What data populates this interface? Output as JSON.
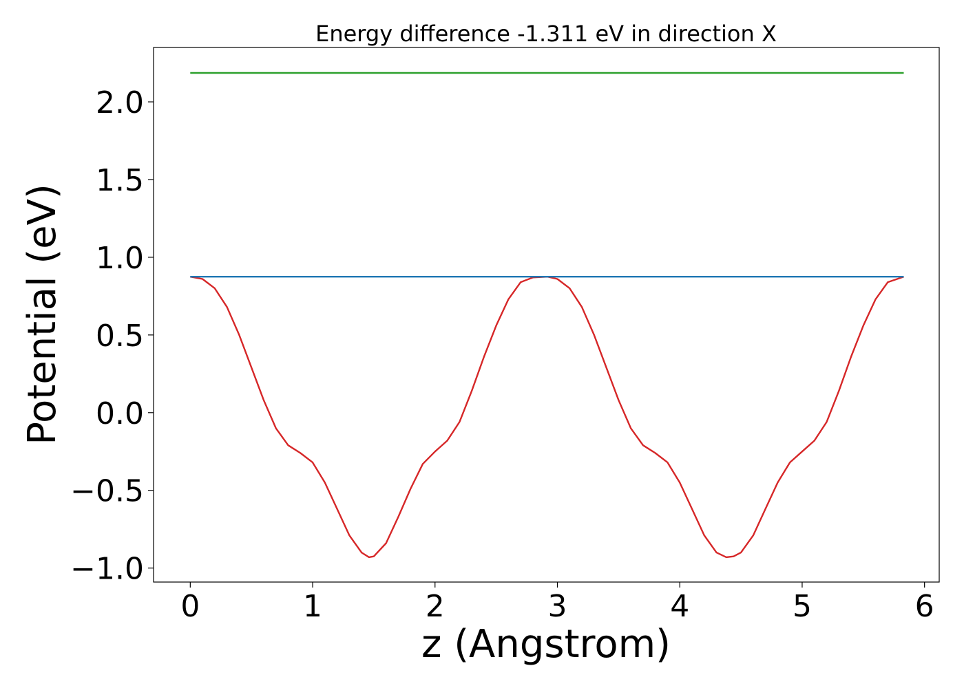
{
  "chart_data": {
    "type": "line",
    "title": "Energy difference -1.311 eV in direction X",
    "xlabel": "z (Angstrom)",
    "ylabel": "Potential (eV)",
    "xlim": [
      -0.3,
      6.12
    ],
    "ylim": [
      -1.09,
      2.35
    ],
    "x_ticks": [
      0,
      1,
      2,
      3,
      4,
      5,
      6
    ],
    "x_tick_labels": [
      "0",
      "1",
      "2",
      "3",
      "4",
      "5",
      "6"
    ],
    "y_ticks": [
      -1.0,
      -0.5,
      0.0,
      0.5,
      1.0,
      1.5,
      2.0
    ],
    "y_tick_labels": [
      "−1.0",
      "−0.5",
      "0.0",
      "0.5",
      "1.0",
      "1.5",
      "2.0"
    ],
    "grid": false,
    "series": [
      {
        "color": "#d62728",
        "x": [
          0.0,
          0.1,
          0.2,
          0.3,
          0.4,
          0.5,
          0.6,
          0.7,
          0.8,
          0.9,
          1.0,
          1.1,
          1.2,
          1.3,
          1.4,
          1.46,
          1.5,
          1.6,
          1.7,
          1.8,
          1.9,
          2.0,
          2.1,
          2.2,
          2.3,
          2.4,
          2.5,
          2.6,
          2.7,
          2.8,
          2.92,
          3.0,
          3.1,
          3.2,
          3.3,
          3.4,
          3.5,
          3.6,
          3.7,
          3.8,
          3.9,
          4.0,
          4.1,
          4.2,
          4.3,
          4.38,
          4.44,
          4.5,
          4.6,
          4.7,
          4.8,
          4.9,
          5.0,
          5.1,
          5.2,
          5.3,
          5.4,
          5.5,
          5.6,
          5.7,
          5.83
        ],
        "y": [
          0.875,
          0.86,
          0.8,
          0.68,
          0.5,
          0.29,
          0.08,
          -0.1,
          -0.21,
          -0.26,
          -0.32,
          -0.45,
          -0.62,
          -0.79,
          -0.9,
          -0.93,
          -0.925,
          -0.84,
          -0.67,
          -0.49,
          -0.33,
          -0.25,
          -0.18,
          -0.06,
          0.14,
          0.36,
          0.56,
          0.73,
          0.84,
          0.87,
          0.875,
          0.86,
          0.8,
          0.68,
          0.5,
          0.29,
          0.08,
          -0.1,
          -0.21,
          -0.26,
          -0.32,
          -0.45,
          -0.62,
          -0.79,
          -0.9,
          -0.93,
          -0.925,
          -0.9,
          -0.79,
          -0.62,
          -0.45,
          -0.32,
          -0.25,
          -0.18,
          -0.06,
          0.14,
          0.36,
          0.56,
          0.73,
          0.84,
          0.875
        ]
      },
      {
        "color": "#1f77b4",
        "x": [
          0.0,
          5.83
        ],
        "y": [
          0.875,
          0.875
        ]
      },
      {
        "color": "#2ca02c",
        "x": [
          0.0,
          5.83
        ],
        "y": [
          2.186,
          2.186
        ]
      }
    ]
  }
}
